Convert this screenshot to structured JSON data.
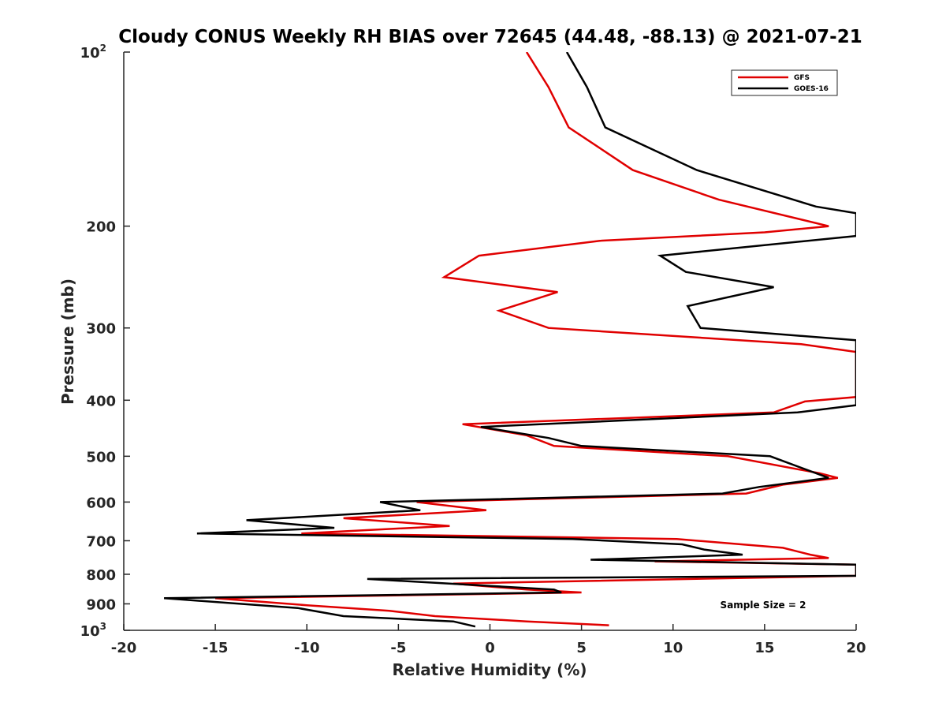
{
  "chart_data": {
    "type": "line",
    "title": "Cloudy CONUS Weekly RH BIAS over 72645 (44.48, -88.13) @ 2021-07-21",
    "xlabel": "Relative Humidity (%)",
    "ylabel": "Pressure (mb)",
    "xlim": [
      -20,
      20
    ],
    "ylim": [
      100,
      1000
    ],
    "yscale": "log",
    "y_reversed": true,
    "grid": false,
    "legend_position": "top-right",
    "x_ticks": [
      "-20",
      "-15",
      "-10",
      "-5",
      "0",
      "5",
      "10",
      "15",
      "20"
    ],
    "y_ticks": [
      {
        "value": 100,
        "label": "10",
        "sup": "2"
      },
      {
        "value": 200,
        "label": "200",
        "sup": ""
      },
      {
        "value": 300,
        "label": "300",
        "sup": ""
      },
      {
        "value": 400,
        "label": "400",
        "sup": ""
      },
      {
        "value": 500,
        "label": "500",
        "sup": ""
      },
      {
        "value": 600,
        "label": "600",
        "sup": ""
      },
      {
        "value": 700,
        "label": "700",
        "sup": ""
      },
      {
        "value": 800,
        "label": "800",
        "sup": ""
      },
      {
        "value": 900,
        "label": "900",
        "sup": ""
      },
      {
        "value": 1000,
        "label": "10",
        "sup": "3"
      }
    ],
    "annotation": "Sample Size = 2",
    "series": [
      {
        "name": "GFS",
        "color": "#e00000",
        "points": [
          [
            2.0,
            100
          ],
          [
            3.2,
            115
          ],
          [
            4.3,
            135
          ],
          [
            7.8,
            160
          ],
          [
            12.5,
            180
          ],
          [
            18.5,
            200
          ],
          [
            15.0,
            205
          ],
          [
            6.0,
            212
          ],
          [
            -0.6,
            225
          ],
          [
            -2.5,
            245
          ],
          [
            3.7,
            260
          ],
          [
            0.5,
            280
          ],
          [
            3.2,
            300
          ],
          [
            17.0,
            320
          ],
          [
            20.0,
            330
          ],
          [
            20.0,
            395
          ],
          [
            17.2,
            402
          ],
          [
            15.5,
            420
          ],
          [
            -1.5,
            440
          ],
          [
            2.0,
            460
          ],
          [
            3.5,
            480
          ],
          [
            13.0,
            500
          ],
          [
            18.0,
            535
          ],
          [
            19.0,
            545
          ],
          [
            16.0,
            560
          ],
          [
            14.0,
            580
          ],
          [
            -4.0,
            600
          ],
          [
            -0.2,
            620
          ],
          [
            -8.0,
            640
          ],
          [
            -2.2,
            660
          ],
          [
            -10.3,
            680
          ],
          [
            10.2,
            695
          ],
          [
            16.0,
            720
          ],
          [
            17.5,
            740
          ],
          [
            18.5,
            750
          ],
          [
            9.0,
            760
          ],
          [
            20.0,
            770
          ],
          [
            20.0,
            805
          ],
          [
            -2.0,
            830
          ],
          [
            2.0,
            850
          ],
          [
            5.0,
            860
          ],
          [
            -15.0,
            880
          ],
          [
            -10.0,
            905
          ],
          [
            -5.5,
            925
          ],
          [
            -3.0,
            945
          ],
          [
            2.0,
            965
          ],
          [
            6.5,
            980
          ]
        ]
      },
      {
        "name": "GOES-16",
        "color": "#000000",
        "points": [
          [
            4.2,
            100
          ],
          [
            5.3,
            115
          ],
          [
            6.3,
            135
          ],
          [
            11.3,
            160
          ],
          [
            17.8,
            185
          ],
          [
            20.0,
            190
          ],
          [
            20.0,
            208
          ],
          [
            9.3,
            225
          ],
          [
            10.7,
            240
          ],
          [
            15.5,
            255
          ],
          [
            10.8,
            275
          ],
          [
            11.5,
            300
          ],
          [
            20.0,
            315
          ],
          [
            20.0,
            408
          ],
          [
            16.8,
            420
          ],
          [
            -0.5,
            445
          ],
          [
            3.2,
            465
          ],
          [
            5.0,
            480
          ],
          [
            15.3,
            500
          ],
          [
            18.5,
            545
          ],
          [
            14.7,
            565
          ],
          [
            12.7,
            580
          ],
          [
            -6.0,
            600
          ],
          [
            -3.8,
            620
          ],
          [
            -13.3,
            645
          ],
          [
            -8.5,
            665
          ],
          [
            -16.0,
            680
          ],
          [
            4.5,
            695
          ],
          [
            10.5,
            710
          ],
          [
            11.7,
            725
          ],
          [
            13.8,
            740
          ],
          [
            5.5,
            755
          ],
          [
            20.0,
            770
          ],
          [
            20.0,
            805
          ],
          [
            -6.7,
            815
          ],
          [
            3.5,
            850
          ],
          [
            3.9,
            860
          ],
          [
            -17.8,
            880
          ],
          [
            -10.5,
            915
          ],
          [
            -8.0,
            945
          ],
          [
            -2.0,
            965
          ],
          [
            -0.8,
            985
          ]
        ]
      }
    ]
  }
}
